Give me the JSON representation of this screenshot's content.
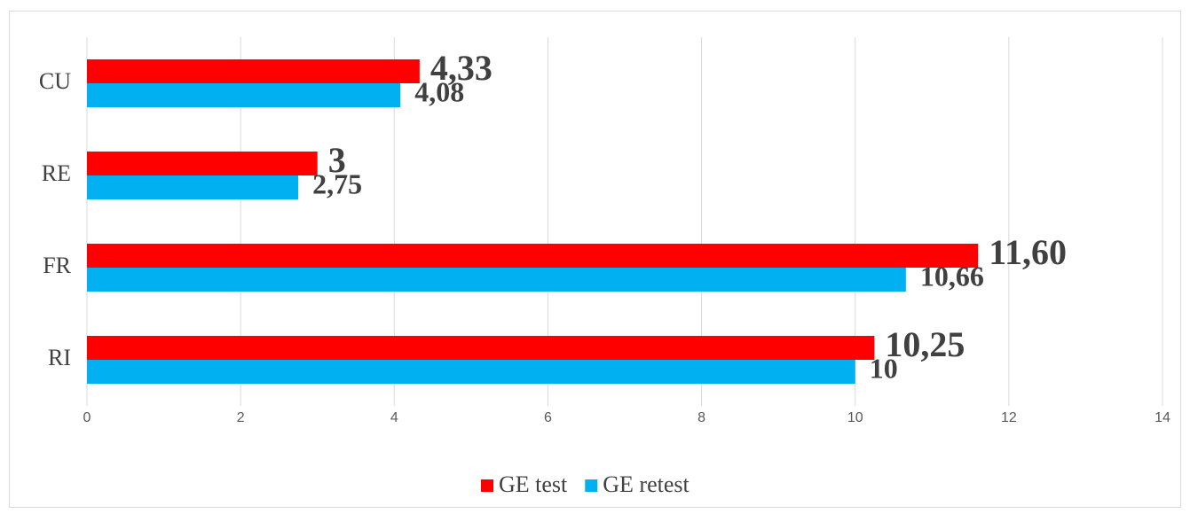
{
  "chart_data": {
    "type": "bar",
    "orientation": "horizontal",
    "categories": [
      "CU",
      "RE",
      "FR",
      "RI"
    ],
    "series": [
      {
        "name": "GE test",
        "color": "#ff0000",
        "values": [
          4.33,
          3,
          11.6,
          10.25
        ],
        "value_labels": [
          "4,33",
          "3",
          "11,60",
          "10,25"
        ]
      },
      {
        "name": "GE retest",
        "color": "#00b0f0",
        "values": [
          4.08,
          2.75,
          10.66,
          10
        ],
        "value_labels": [
          "4,08",
          "2,75",
          "10,66",
          "10"
        ]
      }
    ],
    "xlim": [
      0,
      14
    ],
    "xticks": [
      0,
      2,
      4,
      6,
      8,
      10,
      12,
      14
    ],
    "grid": true,
    "legend": "bottom"
  }
}
